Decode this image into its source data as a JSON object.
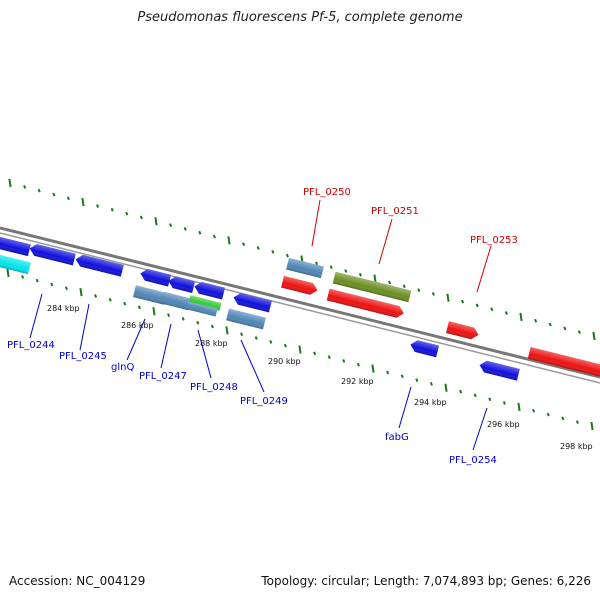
{
  "title": "Pseudomonas fluorescens Pf-5, complete genome",
  "footer": {
    "accession": "Accession: NC_004129",
    "summary": "Topology: circular; Length: 7,074,893 bp; Genes: 6,226"
  },
  "ticks": [
    "284 kbp",
    "286 kbp",
    "288 kbp",
    "290 kbp",
    "292 kbp",
    "294 kbp",
    "296 kbp",
    "298 kbp"
  ],
  "genes_forward": [
    "PFL_0250",
    "PFL_0251",
    "PFL_0253"
  ],
  "genes_reverse": [
    "PFL_0244",
    "PFL_0245",
    "glnQ",
    "PFL_0247",
    "PFL_0248",
    "PFL_0249",
    "fabG",
    "PFL_0254"
  ],
  "colors": {
    "backbone": "#777777",
    "forward_cds": "#ee1111",
    "reverse_cds": "#1111dd",
    "steelblue_cds": "#4f86b5",
    "olive_cds": "#6b8e23",
    "green_cds": "#33cc33",
    "cyan_cds": "#00e5ee",
    "tick_green": "#1a7a1a",
    "label_forward": "#cc0000",
    "label_reverse": "#0000cc"
  }
}
